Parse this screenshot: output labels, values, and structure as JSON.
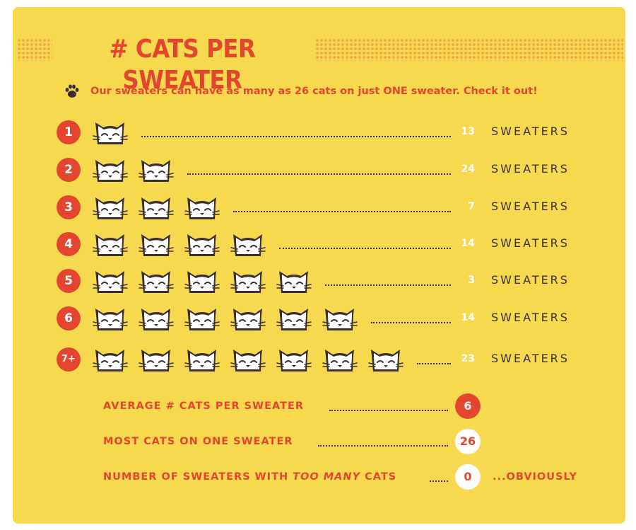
{
  "title": "# CATS PER SWEATER",
  "intro": "Our sweaters can have as many as 26 cats on just ONE sweater. Check it out!",
  "icons": {
    "intro": "paw-print-icon",
    "cat": "cat-face-icon"
  },
  "colors": {
    "background": "#f7d94f",
    "accent": "#e4452e",
    "dots": "#f0a64a",
    "text_dark": "#3a3030"
  },
  "chart_data": {
    "type": "bar",
    "title": "# CATS PER SWEATER",
    "categories": [
      "1",
      "2",
      "3",
      "4",
      "5",
      "6",
      "7+"
    ],
    "values": [
      13,
      24,
      7,
      14,
      3,
      14,
      23
    ],
    "unit": "SWEATERS"
  },
  "stats": [
    {
      "label": "AVERAGE # CATS PER SWEATER",
      "value": "6",
      "style": "red"
    },
    {
      "label": "MOST CATS ON ONE SWEATER",
      "value": "26",
      "style": "white"
    },
    {
      "label_pre": "NUMBER OF SWEATERS WITH ",
      "label_em": "TOO MANY",
      "label_post": " CATS",
      "value": "0",
      "style": "white",
      "suffix": "...OBVIOUSLY"
    }
  ]
}
